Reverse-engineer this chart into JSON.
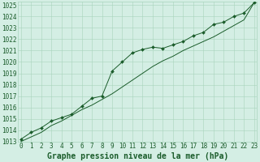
{
  "title": "Graphe pression niveau de la mer (hPa)",
  "x_values": [
    0,
    1,
    2,
    3,
    4,
    5,
    6,
    7,
    8,
    9,
    10,
    11,
    12,
    13,
    14,
    15,
    16,
    17,
    18,
    19,
    20,
    21,
    22,
    23
  ],
  "y_main": [
    1013.2,
    1013.8,
    1014.2,
    1014.8,
    1015.1,
    1015.4,
    1016.1,
    1016.8,
    1017.0,
    1019.2,
    1020.0,
    1020.8,
    1021.1,
    1021.3,
    1021.2,
    1021.5,
    1021.8,
    1022.3,
    1022.6,
    1023.3,
    1023.5,
    1024.0,
    1024.3,
    1025.2
  ],
  "y_smooth": [
    1013.0,
    1013.4,
    1013.8,
    1014.4,
    1014.8,
    1015.3,
    1015.8,
    1016.2,
    1016.7,
    1017.2,
    1017.8,
    1018.4,
    1019.0,
    1019.6,
    1020.1,
    1020.5,
    1021.0,
    1021.4,
    1021.8,
    1022.2,
    1022.7,
    1023.2,
    1023.7,
    1025.2
  ],
  "ylim_min": 1013,
  "ylim_max": 1025,
  "background_color": "#d4eee4",
  "grid_color": "#a8d4bc",
  "line_color": "#1a5c2a",
  "marker_color": "#1a5c2a",
  "font_color": "#1a5c2a",
  "title_fontsize": 7,
  "tick_fontsize": 5.5
}
